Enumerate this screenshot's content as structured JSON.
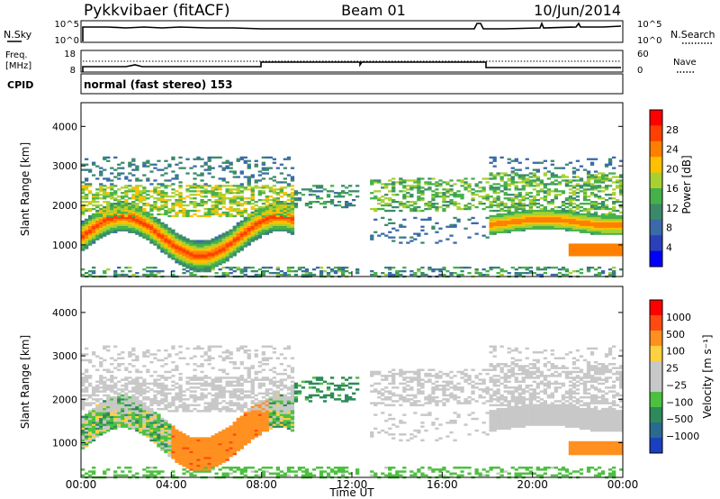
{
  "header": {
    "station": "Pykkvibaer (fitACF)",
    "beam": "Beam 01",
    "date": "10/Jun/2014"
  },
  "top_panels": {
    "nsky_label": "N.Sky",
    "nsky_ticks": [
      "10^5",
      "10^0"
    ],
    "nsearch_label": "N.Search",
    "nsearch_ticks": [
      "10^5",
      "10^0"
    ],
    "freq_label": "Freq.",
    "freq_unit": "[MHz]",
    "freq_ticks": [
      "18",
      "8"
    ],
    "nave_label": "Nave",
    "nave_ticks": [
      "60",
      "0"
    ],
    "cpid_label": "CPID",
    "cpid_text": "normal (fast stereo) 153"
  },
  "chart_data": [
    {
      "type": "heatmap",
      "name": "power",
      "ylabel": "Slant Range [km]",
      "xlabel": "",
      "ylim": [
        200,
        4600
      ],
      "yticks": [
        "1000",
        "2000",
        "3000",
        "4000"
      ],
      "x_ticks": [
        "00:00",
        "04:00",
        "08:00",
        "12:00",
        "16:00",
        "20:00",
        "00:00"
      ],
      "colorbar": {
        "label": "Power [dB]",
        "ticks": [
          "28",
          "24",
          "20",
          "16",
          "12",
          "8",
          "4"
        ],
        "colors": [
          "#0000ff",
          "#2a3fb8",
          "#3a6aa8",
          "#3a8a6a",
          "#46b04a",
          "#a8d030",
          "#ffc000",
          "#ff8000",
          "#ff4000",
          "#ff0000"
        ]
      }
    },
    {
      "type": "heatmap",
      "name": "velocity",
      "ylabel": "Slant Range [km]",
      "xlabel": "Time UT",
      "ylim": [
        200,
        4600
      ],
      "yticks": [
        "1000",
        "2000",
        "3000",
        "4000"
      ],
      "x_ticks": [
        "00:00",
        "04:00",
        "08:00",
        "12:00",
        "16:00",
        "20:00",
        "00:00"
      ],
      "colorbar": {
        "label": "Velocity [m s⁻¹]",
        "ticks": [
          "1000",
          "500",
          "100",
          "25",
          "−25",
          "−100",
          "−500",
          "−1000"
        ],
        "colors": [
          "#1a3fc0",
          "#2a6a90",
          "#2e8a5a",
          "#4cc040",
          "#c8c8c8",
          "#c8c8c8",
          "#ffd040",
          "#ff9020",
          "#ff4a10",
          "#ff0000"
        ]
      }
    }
  ]
}
